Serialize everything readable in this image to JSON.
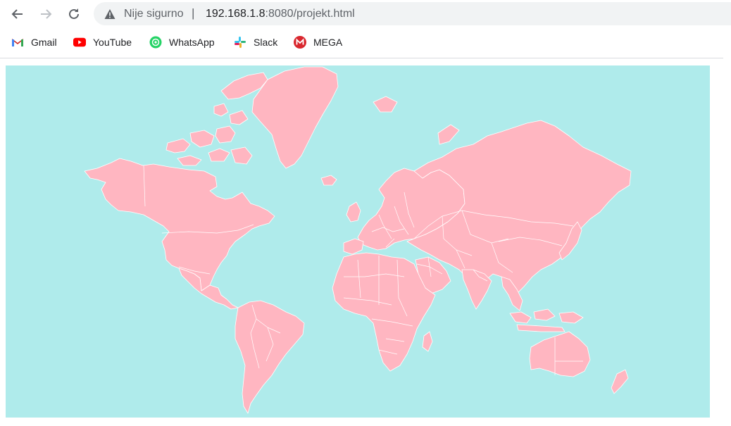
{
  "browser": {
    "security_label": "Nije sigurno",
    "separator": "|",
    "url_host": "192.168.1.8",
    "url_rest": ":8080/projekt.html"
  },
  "bookmarks": [
    {
      "label": "Gmail",
      "icon": "gmail-icon"
    },
    {
      "label": "YouTube",
      "icon": "youtube-icon"
    },
    {
      "label": "WhatsApp",
      "icon": "whatsapp-icon"
    },
    {
      "label": "Slack",
      "icon": "slack-icon"
    },
    {
      "label": "MEGA",
      "icon": "mega-icon"
    }
  ],
  "colors": {
    "ocean": "#afebeb",
    "land": "#ffb6c1",
    "country_border": "#ffffff"
  }
}
